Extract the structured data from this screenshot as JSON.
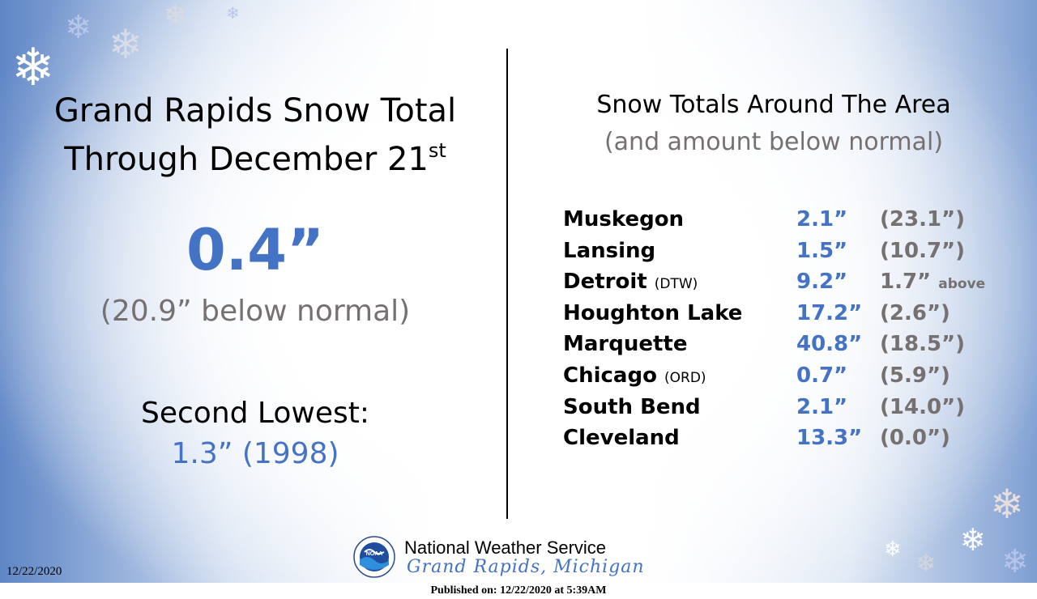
{
  "left": {
    "title_line1": "Grand Rapids Snow Total",
    "title_line2": "Through December 21",
    "title_sup": "st",
    "total": "0.4”",
    "below_normal": "(20.9” below normal)",
    "second_lowest_label": "Second Lowest:",
    "second_lowest_value": "1.3” (1998)"
  },
  "right": {
    "title": "Snow Totals Around The Area",
    "subtitle": "(and amount below normal)",
    "rows": [
      {
        "city": "Muskegon",
        "code": "",
        "amount": "2.1”",
        "diff": "(23.1”)",
        "diff_suffix": ""
      },
      {
        "city": "Lansing",
        "code": "",
        "amount": "1.5”",
        "diff": "(10.7”)",
        "diff_suffix": ""
      },
      {
        "city": "Detroit",
        "code": "(DTW)",
        "amount": "9.2”",
        "diff": "1.7”",
        "diff_suffix": "above"
      },
      {
        "city": "Houghton Lake",
        "code": "",
        "amount": "17.2”",
        "diff": "(2.6”)",
        "diff_suffix": ""
      },
      {
        "city": "Marquette",
        "code": "",
        "amount": "40.8”",
        "diff": "(18.5”)",
        "diff_suffix": ""
      },
      {
        "city": "Chicago",
        "code": "(ORD)",
        "amount": "0.7”",
        "diff": "(5.9”)",
        "diff_suffix": ""
      },
      {
        "city": "South Bend",
        "code": "",
        "amount": "2.1”",
        "diff": "(14.0”)",
        "diff_suffix": ""
      },
      {
        "city": "Cleveland",
        "code": "",
        "amount": "13.3”",
        "diff": "(0.0”)",
        "diff_suffix": ""
      }
    ]
  },
  "footer": {
    "org": "National Weather Service",
    "location": "Grand Rapids, Michigan",
    "logo_text": "NOAA",
    "date": "12/22/2020",
    "published": "Published on: 12/22/2020 at 5:39AM"
  },
  "colors": {
    "accent": "#4472c4",
    "gray_text": "#767171",
    "edge_blue": "#5f86c6"
  },
  "icons": {
    "snowflake": "snowflake-icon",
    "logo": "noaa-logo-icon"
  }
}
